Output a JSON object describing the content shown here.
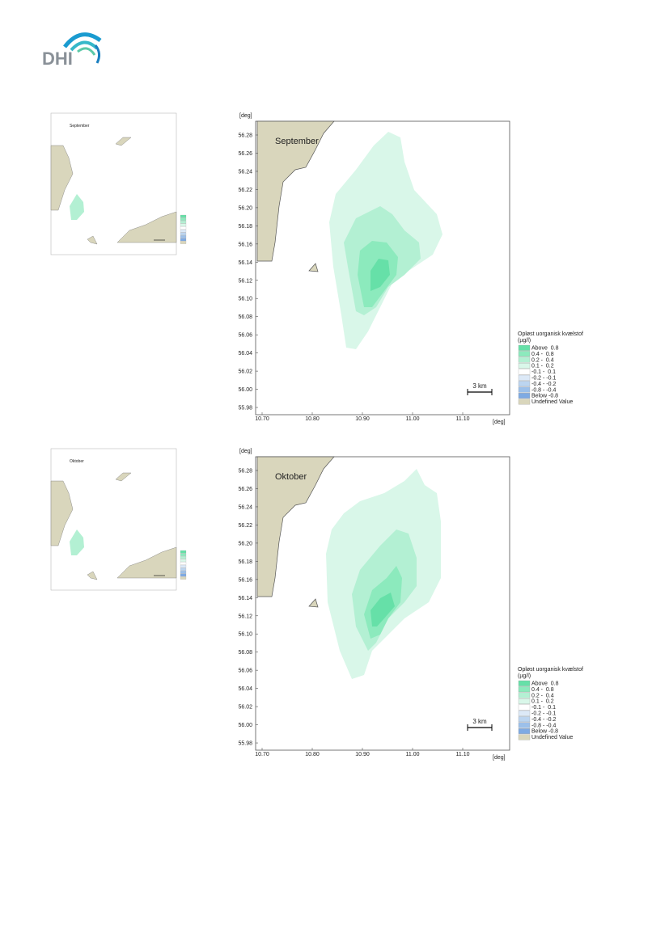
{
  "header": {
    "logo": "DHI"
  },
  "panels": [
    {
      "title": "September",
      "inset": {
        "title": "September"
      },
      "y_unit": "[deg]",
      "x_unit": "[deg]",
      "yticks": [
        "56.28",
        "56.26",
        "56.24",
        "56.22",
        "56.20",
        "56.18",
        "56.16",
        "56.14",
        "56.12",
        "56.10",
        "56.08",
        "56.06",
        "56.04",
        "56.02",
        "56.00",
        "55.98"
      ],
      "xticks": [
        "10.70",
        "10.80",
        "10.90",
        "11.00",
        "11.10"
      ],
      "scale_bar": "3 km",
      "legend": {
        "title": "Opløst uorganisk kvælstof",
        "unit": "(µg/l)",
        "items": [
          {
            "label": "Above  0.8",
            "color": "#66e0a8"
          },
          {
            "label": "0.4 -  0.8",
            "color": "#8ceabd"
          },
          {
            "label": "0.2 -  0.4",
            "color": "#b3f0d3"
          },
          {
            "label": "0.1 -  0.2",
            "color": "#d9f7e9"
          },
          {
            "label": "-0.1 -  0.1",
            "color": "#ffffff"
          },
          {
            "label": "-0.2 - -0.1",
            "color": "#dce9f7"
          },
          {
            "label": "-0.4 - -0.2",
            "color": "#bcd5f0"
          },
          {
            "label": "-0.8 - -0.4",
            "color": "#9cc0ea"
          },
          {
            "label": "Below -0.8",
            "color": "#7eaae3"
          },
          {
            "label": "Undefined Value",
            "color": "#d9d6bc"
          }
        ]
      }
    },
    {
      "title": "Oktober",
      "inset": {
        "title": "Oktober"
      },
      "y_unit": "[deg]",
      "x_unit": "[deg]",
      "yticks": [
        "56.28",
        "56.26",
        "56.24",
        "56.22",
        "56.20",
        "56.18",
        "56.16",
        "56.14",
        "56.12",
        "56.10",
        "56.08",
        "56.06",
        "56.04",
        "56.02",
        "56.00",
        "55.98"
      ],
      "xticks": [
        "10.70",
        "10.80",
        "10.90",
        "11.00",
        "11.10"
      ],
      "scale_bar": "3 km",
      "legend": {
        "title": "Opløst uorganisk kvælstof",
        "unit": "(µg/l)",
        "items": [
          {
            "label": "Above  0.8",
            "color": "#66e0a8"
          },
          {
            "label": "0.4 -  0.8",
            "color": "#8ceabd"
          },
          {
            "label": "0.2 -  0.4",
            "color": "#b3f0d3"
          },
          {
            "label": "0.1 -  0.2",
            "color": "#d9f7e9"
          },
          {
            "label": "-0.1 -  0.1",
            "color": "#ffffff"
          },
          {
            "label": "-0.2 - -0.1",
            "color": "#dce9f7"
          },
          {
            "label": "-0.4 - -0.2",
            "color": "#bcd5f0"
          },
          {
            "label": "-0.8 - -0.4",
            "color": "#9cc0ea"
          },
          {
            "label": "Below -0.8",
            "color": "#7eaae3"
          },
          {
            "label": "Undefined Value",
            "color": "#d9d6bc"
          }
        ]
      }
    }
  ]
}
